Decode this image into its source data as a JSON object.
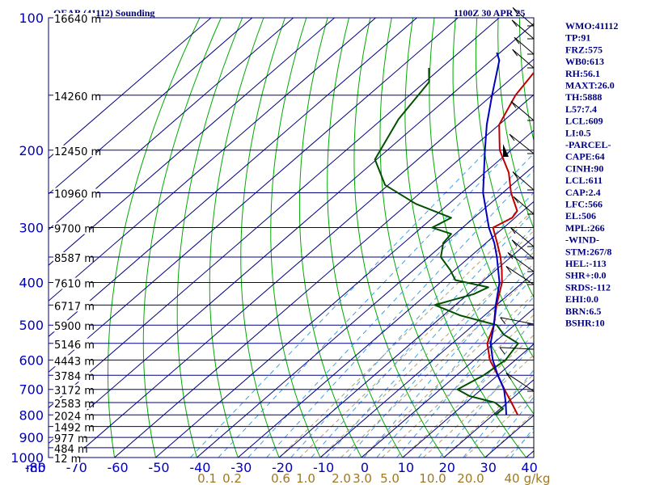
{
  "header": {
    "left": "OEAB (41112) Sounding",
    "right": "1100Z 30 APR 25"
  },
  "axis": {
    "mb_label": "mb",
    "pressure_ticks": [
      "100",
      "200",
      "300",
      "400",
      "500",
      "600",
      "700",
      "800",
      "900",
      "1000"
    ],
    "temp_ticks": [
      "-80",
      "-70",
      "-60",
      "-50",
      "-40",
      "-30",
      "-20",
      "-10",
      "0",
      "10",
      "20",
      "30",
      "40"
    ],
    "mixing_ratio_labels": [
      "0.1",
      "0.2",
      "0.6",
      "1.0",
      "2.0",
      "3.0",
      "5.0",
      "10.0",
      "20.0",
      "40",
      "g/kg"
    ]
  },
  "height_labels": [
    "16640 m",
    "14260 m",
    "12450 m",
    "10960 m",
    "9700 m",
    "8587 m",
    "7610 m",
    "6717 m",
    "5900 m",
    "5146 m",
    "4443 m",
    "3784 m",
    "3172 m",
    "2583 m",
    "2024 m",
    "1492 m",
    "977 m",
    "484 m",
    "12 m"
  ],
  "indices": [
    "WMO:41112",
    "TP:91",
    "FRZ:575",
    "WB0:613",
    "RH:56.1",
    "MAXT:26.0",
    "TH:5888",
    "L57:7.4",
    "LCL:609",
    "LI:0.5",
    "-PARCEL-",
    "CAPE:64",
    "CINH:90",
    "LCL:611",
    "CAP:2.4",
    "LFC:566",
    "EL:506",
    "MPL:266",
    "-WIND-",
    "STM:267/8",
    "HEL:-113",
    "SHR+:0.0",
    "SRDS:-112",
    "EHI:0.0",
    "BRN:6.5",
    "BSHR:10"
  ],
  "colors": {
    "frame": "#000080",
    "temperature": "#c00000",
    "dewpoint": "#005000",
    "parcel": "#0000c0",
    "dry_adiabat": "#00aa00",
    "moist_adiabat": "#b2a070",
    "mixing_ratio": "#40a0e0",
    "axis_text": "#0000c0",
    "mixing_text": "#a07820",
    "index_text": "#000080"
  },
  "chart_data": {
    "type": "line",
    "title": "OEAB (41112) Sounding",
    "subtitle": "1100Z 30 APR 25",
    "xlabel": "",
    "ylabel": "mb",
    "y_scale": "log",
    "ylim": [
      1000,
      100
    ],
    "xlim": [
      -80,
      40
    ],
    "grid": true,
    "series": [
      {
        "key": "temperature",
        "points": [
          [
            800,
            26
          ],
          [
            750,
            21
          ],
          [
            700,
            15.6
          ],
          [
            650,
            10
          ],
          [
            600,
            3.8
          ],
          [
            550,
            -1.5
          ],
          [
            500,
            -5
          ],
          [
            450,
            -10
          ],
          [
            400,
            -15
          ],
          [
            375,
            -18.5
          ],
          [
            350,
            -22.5
          ],
          [
            325,
            -27.3
          ],
          [
            300,
            -32.6
          ],
          [
            285,
            -30.7
          ],
          [
            275,
            -31.4
          ],
          [
            250,
            -38
          ],
          [
            225,
            -44.2
          ],
          [
            200,
            -52.7
          ],
          [
            175,
            -60
          ],
          [
            150,
            -64.3
          ],
          [
            125,
            -67.2
          ],
          [
            110,
            -72.6
          ],
          [
            100,
            -76.6
          ]
        ]
      },
      {
        "key": "dewpoint",
        "points": [
          [
            800,
            20.5
          ],
          [
            775,
            20.7
          ],
          [
            750,
            17
          ],
          [
            725,
            9
          ],
          [
            700,
            4.2
          ],
          [
            650,
            6.6
          ],
          [
            600,
            7.6
          ],
          [
            550,
            6
          ],
          [
            525,
            0
          ],
          [
            500,
            -4.3
          ],
          [
            475,
            -16
          ],
          [
            450,
            -25
          ],
          [
            425,
            -18.6
          ],
          [
            410,
            -17
          ],
          [
            395,
            -27
          ],
          [
            375,
            -31
          ],
          [
            350,
            -37
          ],
          [
            325,
            -40.4
          ],
          [
            310,
            -41
          ],
          [
            300,
            -47.4
          ],
          [
            285,
            -45.5
          ],
          [
            265,
            -58
          ],
          [
            240,
            -70.8
          ],
          [
            210,
            -80.4
          ],
          [
            170,
            -86
          ],
          [
            140,
            -89
          ],
          [
            130,
            -93
          ]
        ]
      },
      {
        "key": "parcel",
        "points": [
          [
            800,
            23.2
          ],
          [
            750,
            19.6
          ],
          [
            700,
            15.5
          ],
          [
            650,
            10
          ],
          [
            600,
            4.5
          ],
          [
            550,
            -0.7
          ],
          [
            500,
            -5
          ],
          [
            450,
            -10.2
          ],
          [
            400,
            -15.6
          ],
          [
            350,
            -23.4
          ],
          [
            325,
            -28
          ],
          [
            300,
            -33.6
          ],
          [
            250,
            -44.8
          ],
          [
            200,
            -56.3
          ],
          [
            175,
            -63
          ],
          [
            150,
            -70
          ],
          [
            125,
            -78
          ],
          [
            120,
            -80.8
          ]
        ]
      }
    ]
  }
}
